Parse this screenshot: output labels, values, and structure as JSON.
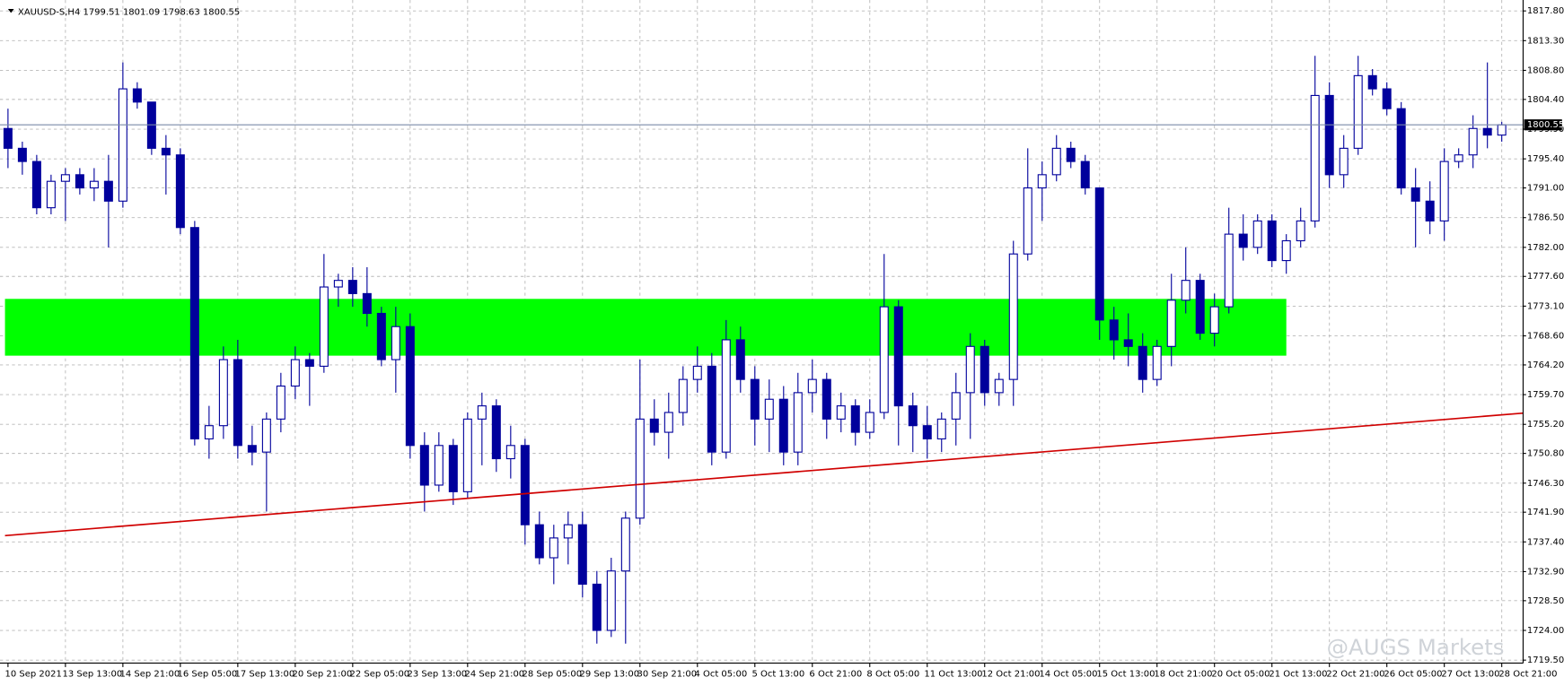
{
  "chart_data": {
    "type": "candlestick",
    "title": "XAUUSD-S,H4  1799.51 1801.09 1798.63 1800.55",
    "watermark": "@AUGS Markets",
    "categories": [
      "10 Sep 2021",
      null,
      null,
      null,
      "13 Sep 13:00",
      null,
      null,
      null,
      "14 Sep 21:00",
      null,
      null,
      null,
      "16 Sep 05:00",
      null,
      null,
      null,
      "17 Sep 13:00",
      null,
      null,
      null,
      "20 Sep 21:00",
      null,
      null,
      null,
      "22 Sep 05:00",
      null,
      null,
      null,
      "23 Sep 13:00",
      null,
      null,
      null,
      "24 Sep 21:00",
      null,
      null,
      null,
      "28 Sep 05:00",
      null,
      null,
      null,
      "29 Sep 13:00",
      null,
      null,
      null,
      "30 Sep 21:00",
      null,
      null,
      null,
      "4 Oct 05:00",
      null,
      null,
      null,
      "5 Oct 13:00",
      null,
      null,
      null,
      "6 Oct 21:00",
      null,
      null,
      null,
      "8 Oct 05:00",
      null,
      null,
      null,
      "11 Oct 13:00",
      null,
      null,
      null,
      "12 Oct 21:00",
      null,
      null,
      null,
      "14 Oct 05:00",
      null,
      null,
      null,
      "15 Oct 13:00",
      null,
      null,
      null,
      "18 Oct 21:00",
      null,
      null,
      null,
      "20 Oct 05:00",
      null,
      null,
      null,
      "21 Oct 13:00",
      null,
      null,
      null,
      "22 Oct 21:00",
      null,
      null,
      null,
      "26 Oct 05:00",
      null,
      null,
      null,
      "27 Oct 13:00",
      null,
      null,
      null,
      "28 Oct 21:00"
    ],
    "open": [
      1800,
      1797,
      1795,
      1788,
      1792,
      1793,
      1791,
      1792,
      1789,
      1806,
      1804,
      1797,
      1796,
      1785,
      1753,
      1755,
      1765,
      1752,
      1751,
      1756,
      1761,
      1765,
      1764,
      1776,
      1777,
      1775,
      1772,
      1765,
      1770,
      1752,
      1746,
      1752,
      1745,
      1756,
      1758,
      1750,
      1752,
      1740,
      1735,
      1738,
      1740,
      1731,
      1724,
      1733,
      1741,
      1756,
      1754,
      1757,
      1762,
      1764,
      1751,
      1768,
      1762,
      1756,
      1759,
      1751,
      1760,
      1762,
      1756,
      1758,
      1754,
      1757,
      1773,
      1758,
      1755,
      1753,
      1756,
      1760,
      1767,
      1760,
      1762,
      1781,
      1791,
      1793,
      1797,
      1795,
      1791,
      1771,
      1768,
      1767,
      1762,
      1767,
      1774,
      1777,
      1769,
      1773,
      1784,
      1782,
      1786,
      1780,
      1783,
      1786,
      1805,
      1793,
      1797,
      1808,
      1806,
      1803,
      1791,
      1789,
      1786,
      1795,
      1796,
      1800,
      1799
    ],
    "high": [
      1803,
      1798,
      1796,
      1793,
      1794,
      1794,
      1794,
      1796,
      1810,
      1807,
      1804,
      1799,
      1797,
      1786,
      1758,
      1767,
      1768,
      1755,
      1757,
      1763,
      1767,
      1766,
      1781,
      1778,
      1779,
      1779,
      1773,
      1773,
      1772,
      1754,
      1754,
      1753,
      1757,
      1760,
      1759,
      1755,
      1753,
      1742,
      1740,
      1742,
      1742,
      1733,
      1735,
      1742,
      1765,
      1759,
      1760,
      1764,
      1767,
      1766,
      1771,
      1770,
      1764,
      1762,
      1761,
      1763,
      1765,
      1763,
      1760,
      1759,
      1759,
      1781,
      1774,
      1760,
      1758,
      1757,
      1763,
      1769,
      1768,
      1763,
      1783,
      1797,
      1795,
      1799,
      1798,
      1796,
      1791,
      1773,
      1772,
      1769,
      1768,
      1778,
      1782,
      1778,
      1775,
      1788,
      1787,
      1787,
      1787,
      1784,
      1788,
      1811,
      1807,
      1799,
      1811,
      1809,
      1807,
      1804,
      1794,
      1792,
      1797,
      1797,
      1802,
      1810,
      1801
    ],
    "low": [
      1794,
      1793,
      1787,
      1787,
      1786,
      1790,
      1789,
      1782,
      1788,
      1803,
      1796,
      1790,
      1784,
      1752,
      1750,
      1753,
      1750,
      1749,
      1742,
      1754,
      1759,
      1758,
      1763,
      1773,
      1773,
      1770,
      1764,
      1760,
      1750,
      1742,
      1745,
      1743,
      1744,
      1749,
      1748,
      1747,
      1737,
      1734,
      1731,
      1734,
      1729,
      1722,
      1723,
      1722,
      1740,
      1752,
      1750,
      1755,
      1760,
      1749,
      1750,
      1760,
      1752,
      1751,
      1749,
      1749,
      1757,
      1753,
      1754,
      1752,
      1753,
      1756,
      1752,
      1751,
      1750,
      1751,
      1752,
      1753,
      1758,
      1758,
      1758,
      1780,
      1786,
      1792,
      1794,
      1790,
      1768,
      1765,
      1764,
      1760,
      1761,
      1764,
      1772,
      1768,
      1767,
      1772,
      1780,
      1781,
      1779,
      1778,
      1782,
      1785,
      1791,
      1791,
      1796,
      1805,
      1802,
      1790,
      1782,
      1784,
      1783,
      1794,
      1794,
      1797,
      1798
    ],
    "close": [
      1797,
      1795,
      1788,
      1792,
      1793,
      1791,
      1792,
      1789,
      1806,
      1804,
      1797,
      1796,
      1785,
      1753,
      1755,
      1765,
      1752,
      1751,
      1756,
      1761,
      1765,
      1764,
      1776,
      1777,
      1775,
      1772,
      1765,
      1770,
      1752,
      1746,
      1752,
      1745,
      1756,
      1758,
      1750,
      1752,
      1740,
      1735,
      1738,
      1740,
      1731,
      1724,
      1733,
      1741,
      1756,
      1754,
      1757,
      1762,
      1764,
      1751,
      1768,
      1762,
      1756,
      1759,
      1751,
      1760,
      1762,
      1756,
      1758,
      1754,
      1757,
      1773,
      1758,
      1755,
      1753,
      1756,
      1760,
      1767,
      1760,
      1762,
      1781,
      1791,
      1793,
      1797,
      1795,
      1791,
      1771,
      1768,
      1767,
      1762,
      1767,
      1774,
      1777,
      1769,
      1773,
      1784,
      1782,
      1786,
      1780,
      1783,
      1786,
      1805,
      1793,
      1797,
      1808,
      1806,
      1803,
      1791,
      1789,
      1786,
      1795,
      1796,
      1800,
      1799,
      1800.55
    ],
    "up_color": "#ffffff",
    "down_color": "#00009c",
    "outline_color": "#00009c",
    "ylim": [
      1719.05,
      1818.7
    ],
    "yticks": [
      {
        "value": 1817.8,
        "label": "1817.80"
      },
      {
        "value": 1813.3,
        "label": "1813.30"
      },
      {
        "value": 1808.8,
        "label": "1808.80"
      },
      {
        "value": 1804.4,
        "label": "1804.40"
      },
      {
        "value": 1799.9,
        "label": "1799.90"
      },
      {
        "value": 1795.4,
        "label": "1795.40"
      },
      {
        "value": 1791,
        "label": "1791.00"
      },
      {
        "value": 1786.5,
        "label": "1786.50"
      },
      {
        "value": 1782,
        "label": "1782.00"
      },
      {
        "value": 1777.6,
        "label": "1777.60"
      },
      {
        "value": 1773.1,
        "label": "1773.10"
      },
      {
        "value": 1768.6,
        "label": "1768.60"
      },
      {
        "value": 1764.2,
        "label": "1764.20"
      },
      {
        "value": 1759.7,
        "label": "1759.70"
      },
      {
        "value": 1755.2,
        "label": "1755.20"
      },
      {
        "value": 1750.8,
        "label": "1750.80"
      },
      {
        "value": 1746.3,
        "label": "1746.30"
      },
      {
        "value": 1741.9,
        "label": "1741.90"
      },
      {
        "value": 1737.4,
        "label": "1737.40"
      },
      {
        "value": 1732.9,
        "label": "1732.90"
      },
      {
        "value": 1728.5,
        "label": "1728.50"
      },
      {
        "value": 1724,
        "label": "1724.00"
      },
      {
        "value": 1719.5,
        "label": "1719.50"
      }
    ],
    "grid": true,
    "current_price": {
      "value": 1800.55,
      "label": "1800.55",
      "color": "#7a8aa8"
    },
    "zone": {
      "low": 1765.6,
      "high": 1774.2,
      "from_index": 0,
      "to_index": 89,
      "color": "#00ff00"
    },
    "trendline": {
      "from_index": 0,
      "from_value": 1738.35,
      "to_index": 105.5,
      "to_value": 1756.9,
      "color": "#d00000"
    }
  }
}
